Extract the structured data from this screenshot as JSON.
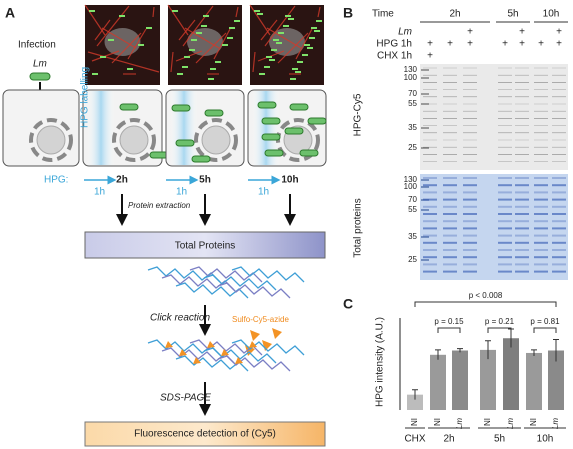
{
  "panel_a": {
    "label": "A",
    "infection": "Infection",
    "lm": "Lm",
    "hpg_labelling": "HPG labelling",
    "hpg": "HPG:",
    "pulses": [
      "1h",
      "1h",
      "1h"
    ],
    "times": [
      "2h",
      "5h",
      "10h"
    ],
    "protein_extraction": "Protein extraction",
    "total_proteins": "Total Proteins",
    "click_reaction": "Click reaction",
    "reagent": "Sulfo-Cy5-azide",
    "sds_page": "SDS-PAGE",
    "detection": "Fluorescence detection of (Cy5)"
  },
  "panel_b": {
    "label": "B",
    "time": "Time",
    "time_groups": [
      "2h",
      "5h",
      "10h"
    ],
    "rows": [
      {
        "label": "Lm",
        "marks": [
          null,
          null,
          "+",
          null,
          "+",
          null,
          "+"
        ]
      },
      {
        "label": "HPG 1h",
        "marks": [
          "+",
          "+",
          "+",
          "+",
          "+",
          "+",
          "+"
        ]
      },
      {
        "label": "CHX 1h",
        "marks": [
          "+",
          null,
          null,
          null,
          null,
          null,
          null
        ]
      }
    ],
    "top_gel_label": "HPG-Cy5",
    "bottom_gel_label": "Total proteins",
    "top_mw": [
      130,
      100,
      70,
      55,
      35,
      25
    ],
    "bottom_mw": [
      130,
      100,
      70,
      55,
      35,
      25
    ]
  },
  "chart_data": {
    "type": "bar",
    "panel_label": "C",
    "y_label": "HPG intensity (A.U.)",
    "categories": [
      "NI",
      "NI",
      "Lm",
      "NI",
      "Lm",
      "NI",
      "Lm"
    ],
    "group_labels": [
      "CHX",
      "2h",
      "5h",
      "10h"
    ],
    "values": [
      0.25,
      0.9,
      0.97,
      0.98,
      1.17,
      0.93,
      0.97
    ],
    "errors": [
      0.08,
      0.08,
      0.03,
      0.15,
      0.15,
      0.05,
      0.18
    ],
    "colors": [
      "#bcbcbc",
      "#9a9a9a",
      "#8a8a8a",
      "#9a9a9a",
      "#7e7e7e",
      "#9a9a9a",
      "#8a8a8a"
    ],
    "ylim": [
      0,
      1.5
    ],
    "annotations": [
      "p < 0.008",
      "p = 0.15",
      "p = 0.21",
      "p = 0.81"
    ]
  }
}
